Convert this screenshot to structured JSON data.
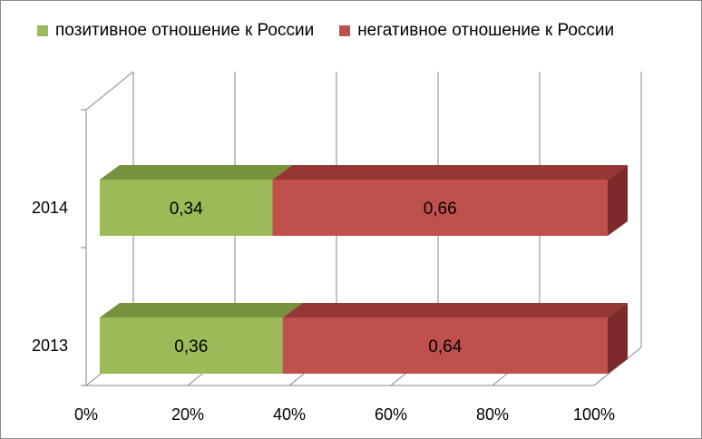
{
  "chart_data": {
    "type": "bar",
    "orientation": "horizontal",
    "stacked": "100%",
    "style": "3d",
    "categories": [
      "2014",
      "2013"
    ],
    "series": [
      {
        "name": "позитивное отношение  к России",
        "values": [
          0.34,
          0.36
        ],
        "labels": [
          "0,34",
          "0,36"
        ],
        "color": "#9BBB59",
        "top_color": "#76923C"
      },
      {
        "name": "негативное отношение  к России",
        "values": [
          0.66,
          0.64
        ],
        "labels": [
          "0,66",
          "0,64"
        ],
        "color": "#C0504D",
        "top_color": "#953735",
        "side_color": "#7B2C2A"
      }
    ],
    "x_ticks": [
      "0%",
      "20%",
      "40%",
      "60%",
      "80%",
      "100%"
    ],
    "xlim": [
      0,
      1
    ],
    "grid": true,
    "legend_position": "top"
  }
}
